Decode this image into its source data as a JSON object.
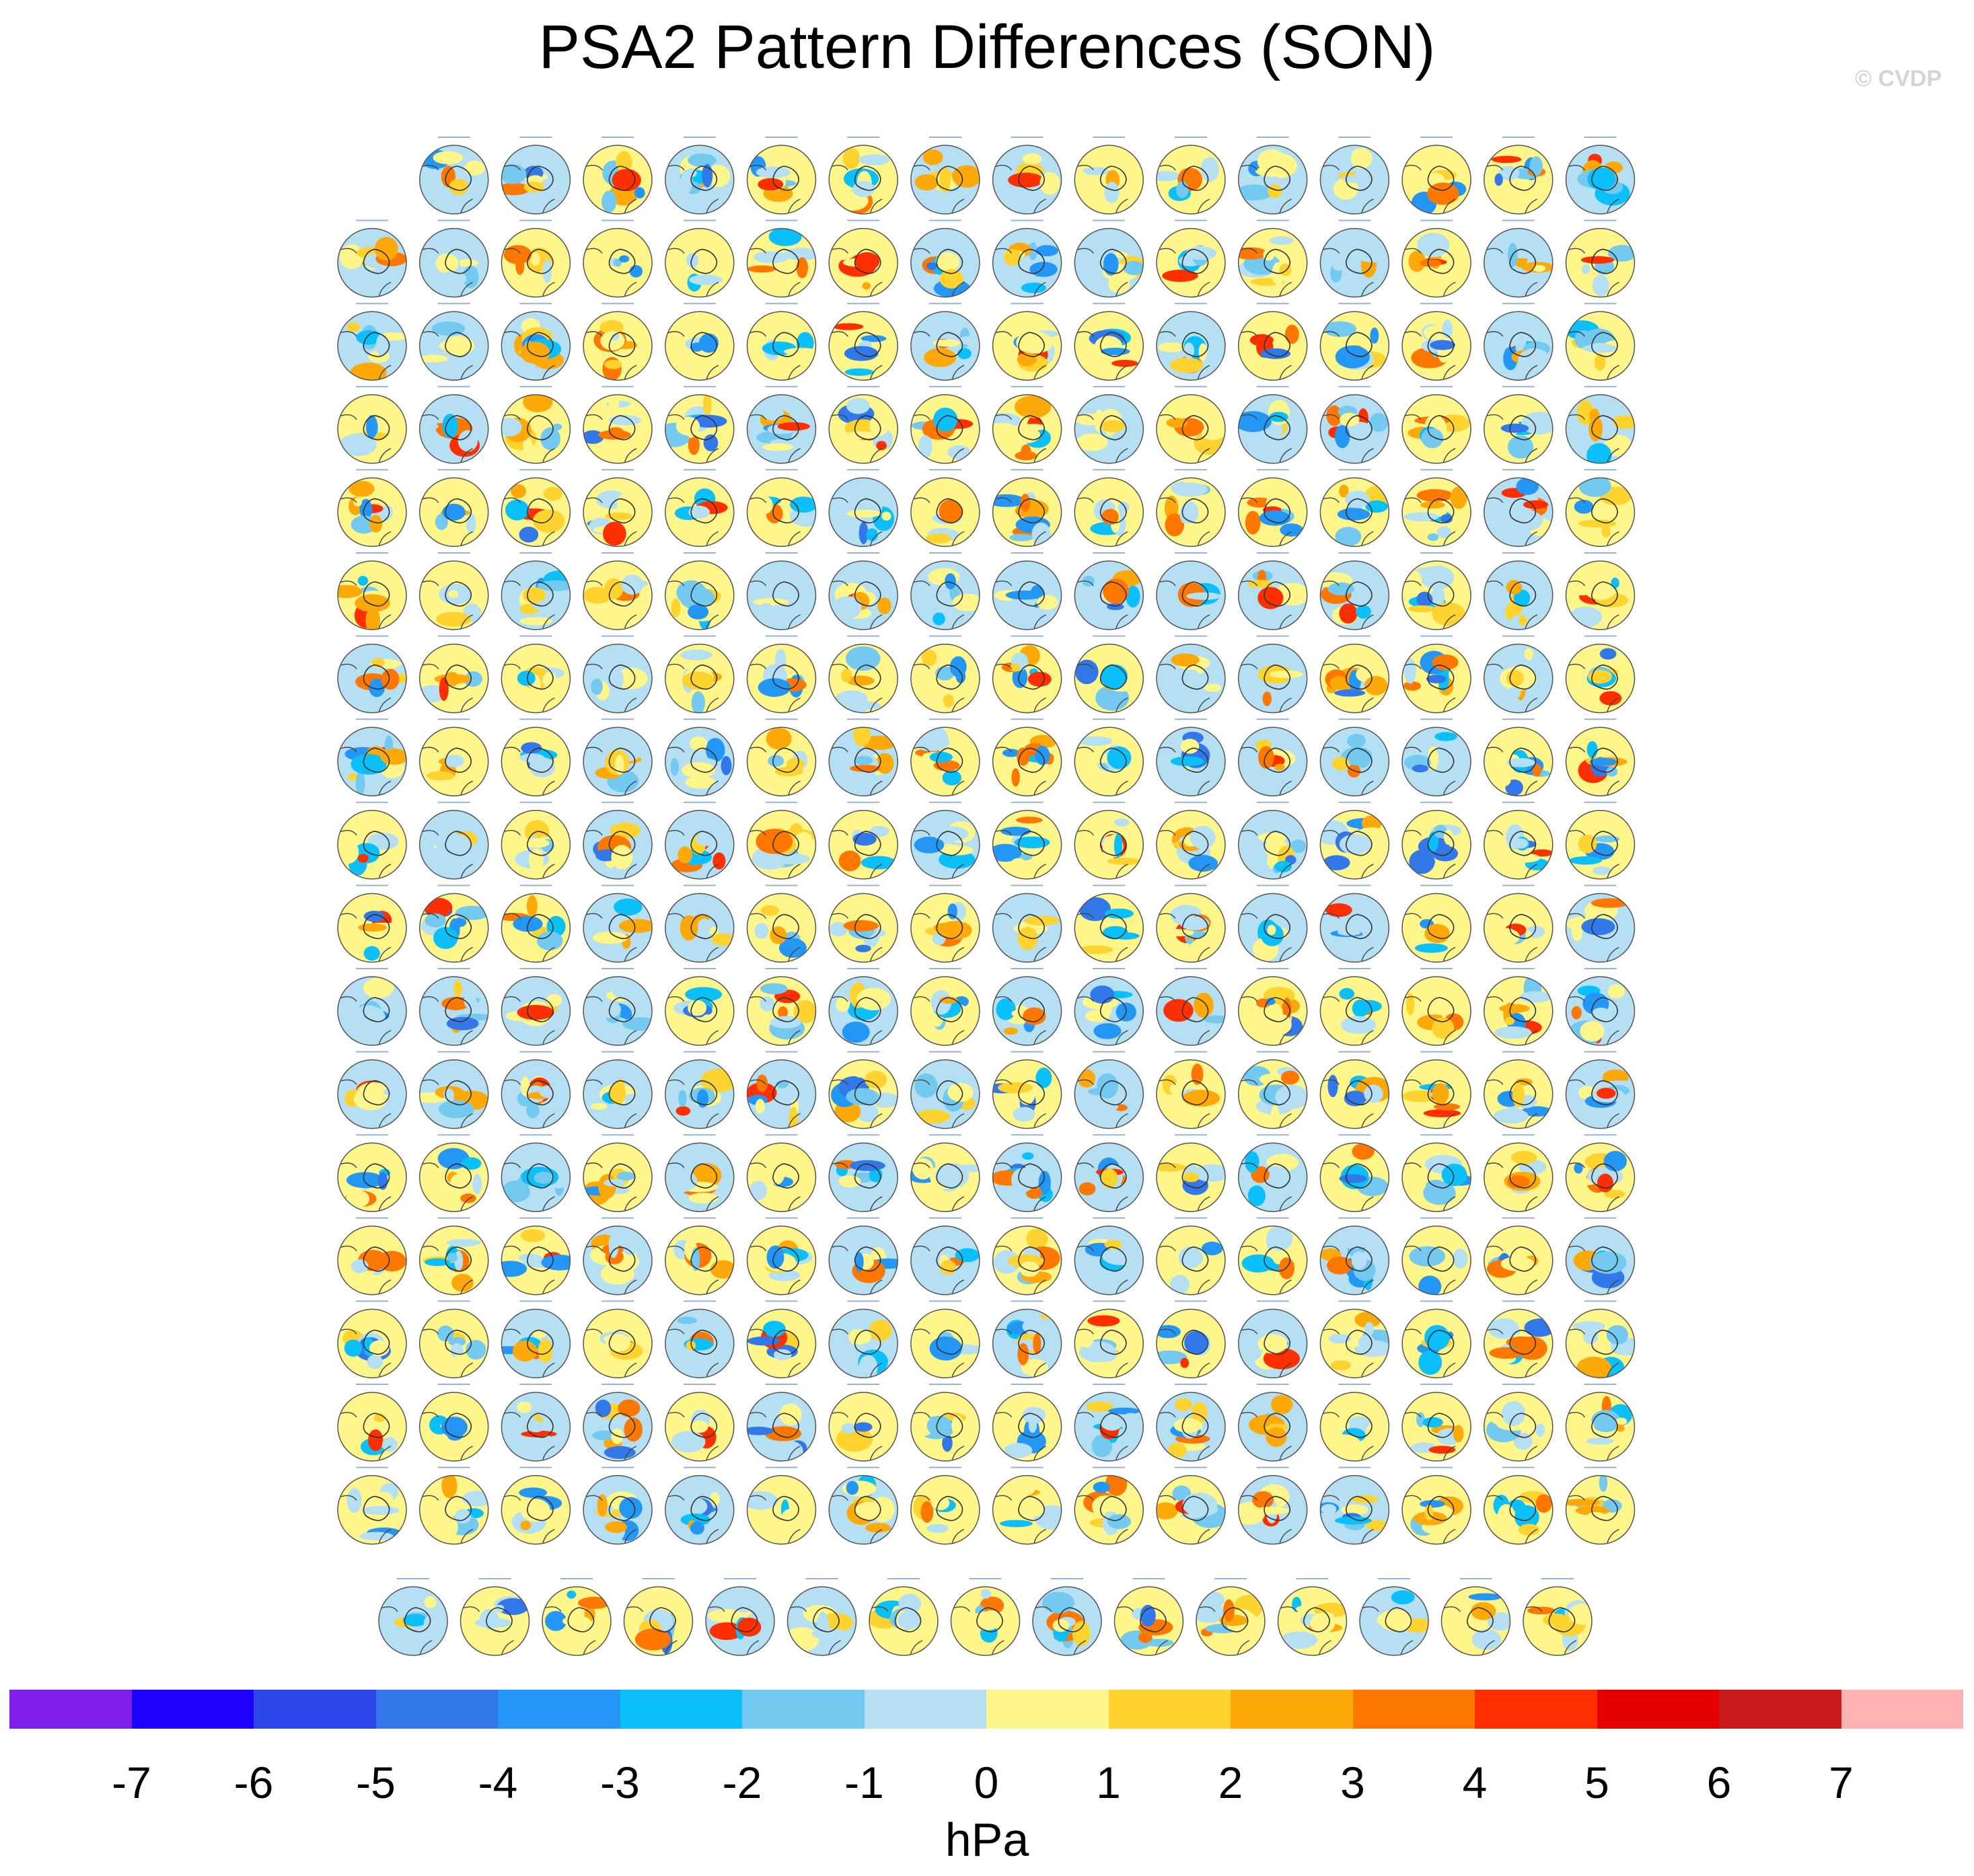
{
  "title": "PSA2 Pattern Differences (SON)",
  "watermark": "© CVDP",
  "colorbar": {
    "units": "hPa",
    "ticks": [
      "-7",
      "-6",
      "-5",
      "-4",
      "-3",
      "-2",
      "-1",
      "0",
      "1",
      "2",
      "3",
      "4",
      "5",
      "6",
      "7"
    ],
    "colors": [
      "#7f1fea",
      "#1f00ff",
      "#2c46e8",
      "#3278e8",
      "#2496f5",
      "#0bc0fa",
      "#74c9f0",
      "#b5dff2",
      "#fef68b",
      "#fed330",
      "#fea90a",
      "#fe7700",
      "#fe2f00",
      "#e50000",
      "#c81a1a",
      "#feb2b2"
    ]
  },
  "chart_data": {
    "type": "heatmap",
    "title": "PSA2 Pattern Differences (SON)",
    "description_units": "hPa",
    "panel_type": "south-polar stereographic map of sea level pressure pattern difference",
    "grid_rows": [
      15,
      16,
      16,
      16,
      16,
      16,
      16,
      16,
      16,
      16,
      16,
      16,
      16,
      16,
      16,
      16,
      16,
      15
    ],
    "panel_count": 286,
    "color_scale": {
      "levels": [
        -7,
        -6,
        -5,
        -4,
        -3,
        -2,
        -1,
        0,
        1,
        2,
        3,
        4,
        5,
        6,
        7
      ],
      "min": -8,
      "max": 8
    },
    "xlabel": "hPa",
    "ylabel": ""
  }
}
